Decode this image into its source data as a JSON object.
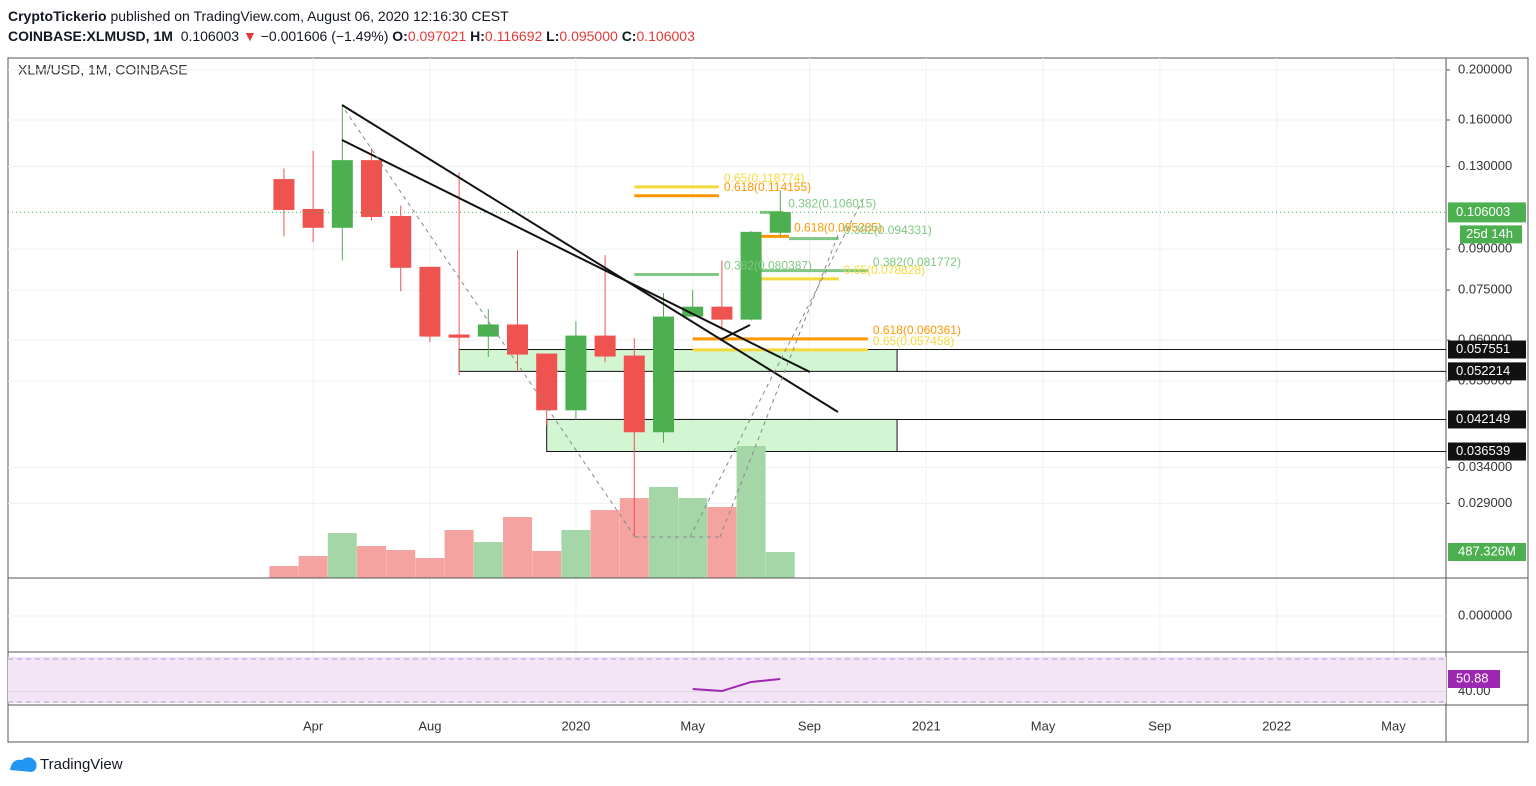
{
  "header": {
    "author": "CryptoTickerio",
    "published": "published on TradingView.com, August 06, 2020 12:16:30 CEST",
    "symbol": "COINBASE:XLMUSD, 1M",
    "last": "0.106003",
    "change": "−0.001606 (−1.49%)",
    "ohlc": [
      {
        "key": "O:",
        "value": "0.097021"
      },
      {
        "key": "H:",
        "value": "0.116692"
      },
      {
        "key": "L:",
        "value": "0.095000"
      },
      {
        "key": "C:",
        "value": "0.106003"
      }
    ]
  },
  "chart_data": {
    "type": "candlestick",
    "title": "XLM/USD, 1M, COINBASE",
    "log_scale": true,
    "grid": true,
    "x": [
      0,
      1,
      2,
      3,
      4,
      5,
      6,
      7,
      8,
      9,
      10,
      11,
      12,
      13,
      14,
      15,
      16,
      17
    ],
    "open": [
      0.1227,
      0.1074,
      0.0992,
      0.1335,
      0.1041,
      0.083,
      0.0614,
      0.0611,
      0.0642,
      0.0564,
      0.044,
      0.0611,
      0.0559,
      0.0399,
      0.0668,
      0.0695,
      0.0659,
      0.097021
    ],
    "high": [
      0.1289,
      0.1396,
      0.1705,
      0.1409,
      0.1093,
      0.083,
      0.1266,
      0.0689,
      0.0895,
      0.0564,
      0.0653,
      0.0876,
      0.0605,
      0.074,
      0.075,
      0.0856,
      0.0975,
      0.116692
    ],
    "low": [
      0.0953,
      0.0928,
      0.0856,
      0.1023,
      0.0746,
      0.0595,
      0.0514,
      0.0557,
      0.0521,
      0.0411,
      0.0421,
      0.0544,
      0.025,
      0.038,
      0.0668,
      0.0627,
      0.0655,
      0.095
    ],
    "close": [
      0.1074,
      0.0992,
      0.1335,
      0.1041,
      0.083,
      0.0611,
      0.0608,
      0.0642,
      0.0564,
      0.044,
      0.0611,
      0.0559,
      0.0399,
      0.0665,
      0.0695,
      0.0659,
      0.097,
      0.106003
    ],
    "up_color": "#4caf50",
    "down_color": "#ef5350",
    "volume": {
      "values": [
        225000000,
        412000000,
        843000000,
        600000000,
        525000000,
        375000000,
        900000000,
        675000000,
        1143000000,
        506000000,
        900000000,
        1274000000,
        1499000000,
        1705000000,
        1499000000,
        1331000000,
        2474000000,
        487326000
      ],
      "value_labels": [
        null,
        null,
        null,
        null,
        null,
        null,
        null,
        null,
        null,
        null,
        null,
        null,
        null,
        null,
        null,
        null,
        null,
        "487.326M"
      ],
      "up_color": "#a5d6a7",
      "down_color": "#f5a3a1"
    },
    "xlim": [
      -9.45,
      39.8
    ],
    "xticks": [
      {
        "value": 1,
        "label": "Apr"
      },
      {
        "value": 5,
        "label": "Aug"
      },
      {
        "value": 10,
        "label": "2020"
      },
      {
        "value": 14,
        "label": "May"
      },
      {
        "value": 18,
        "label": "Sep"
      },
      {
        "value": 22,
        "label": "2021"
      },
      {
        "value": 26,
        "label": "May"
      },
      {
        "value": 30,
        "label": "Sep"
      },
      {
        "value": 34,
        "label": "2022"
      },
      {
        "value": 38,
        "label": "May"
      }
    ],
    "ylim": [
      0.0208,
      0.209
    ],
    "yticks": [
      {
        "value": 0.2,
        "label": "0.200000"
      },
      {
        "value": 0.16,
        "label": "0.160000"
      },
      {
        "value": 0.13,
        "label": "0.130000"
      },
      {
        "value": 0.09,
        "label": "0.090000"
      },
      {
        "value": 0.075,
        "label": "0.075000"
      },
      {
        "value": 0.06,
        "label": "0.060000"
      },
      {
        "value": 0.05,
        "label": "0.050000"
      },
      {
        "value": 0.034,
        "label": "0.034000"
      },
      {
        "value": 0.029,
        "label": "0.029000"
      }
    ],
    "current": {
      "value": 0.106003,
      "countdown": "25d 14h",
      "color": "#4caf50"
    },
    "zones": [
      {
        "top": 0.057551,
        "bottom": 0.052214,
        "x": [
          6,
          21
        ]
      },
      {
        "top": 0.042149,
        "bottom": 0.036539,
        "x": [
          9,
          21
        ]
      }
    ],
    "fib_levels": [
      {
        "label": "0.65(0.118774)",
        "value": 0.118774,
        "color": "#f5d93a",
        "x": [
          12,
          14.9
        ]
      },
      {
        "label": "0.618(0.114155)",
        "value": 0.114155,
        "color": "#ff9800",
        "x": [
          12,
          14.9
        ]
      },
      {
        "label": "0.382(0.106015)",
        "value": 0.106015,
        "color": "#81c784",
        "x": [
          16.3,
          17.1
        ]
      },
      {
        "label": "0.618(0.095285)",
        "value": 0.095285,
        "color": "#ff9800",
        "x": [
          16.3,
          17.3
        ]
      },
      {
        "label": "0.382(0.094331)",
        "value": 0.094331,
        "color": "#81c784",
        "x": [
          17.3,
          19
        ]
      },
      {
        "label": "0.382(0.080387)",
        "value": 0.080387,
        "color": "#81c784",
        "x": [
          12,
          14.9
        ]
      },
      {
        "label": "0.382(0.081772)",
        "value": 0.081772,
        "color": "#81c784",
        "x": [
          16,
          20
        ]
      },
      {
        "label": "0.65(0.078828)",
        "value": 0.078828,
        "color": "#f5d93a",
        "x": [
          16,
          19
        ]
      },
      {
        "label": "0.618(0.060361)",
        "value": 0.060361,
        "color": "#ff9800",
        "x": [
          14,
          20
        ]
      },
      {
        "label": "0.65(0.057458)",
        "value": 0.057458,
        "color": "#f5d93a",
        "x": [
          14,
          20
        ]
      }
    ],
    "oscillator": {
      "ylim": [
        -1,
        1
      ],
      "yticks": [
        {
          "value": 0,
          "label": "0.000000"
        }
      ]
    },
    "rsi": {
      "x": [
        14,
        15,
        16,
        17
      ],
      "values": [
        42.2,
        40.4,
        48.3,
        50.88
      ],
      "color": "#9c27b0",
      "ylim": [
        30,
        70
      ],
      "yticks": [
        {
          "value": 40,
          "label": "40.00"
        }
      ]
    }
  },
  "footer": {
    "brand": "TradingView"
  }
}
